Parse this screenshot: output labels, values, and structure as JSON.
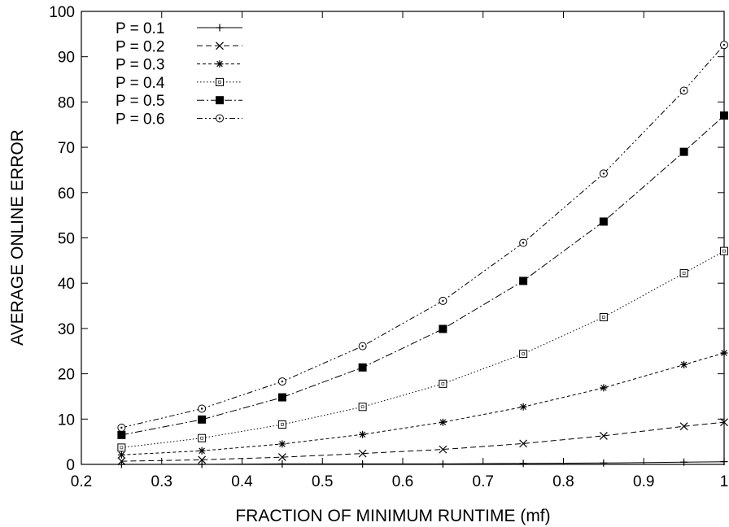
{
  "chart_data": {
    "type": "line",
    "title": "",
    "xlabel": "FRACTION OF MINIMUM RUNTIME (mf)",
    "ylabel": "AVERAGE ONLINE ERROR",
    "xlim": [
      0.2,
      1
    ],
    "ylim": [
      0,
      100
    ],
    "xticks": [
      "0.2",
      "0.3",
      "0.4",
      "0.5",
      "0.6",
      "0.7",
      "0.8",
      "0.9",
      "1"
    ],
    "yticks": [
      "0",
      "10",
      "20",
      "30",
      "40",
      "50",
      "60",
      "70",
      "80",
      "90",
      "100"
    ],
    "grid": false,
    "legend_position": "top-left",
    "x": [
      0.25,
      0.35,
      0.45,
      0.55,
      0.65,
      0.75,
      0.85,
      0.95,
      1.0
    ],
    "series": [
      {
        "name": "P = 0.1",
        "marker": "plus",
        "dash": "solid",
        "values": [
          0.0,
          0.0,
          0.1,
          0.1,
          0.1,
          0.2,
          0.3,
          0.5,
          0.6
        ]
      },
      {
        "name": "P = 0.2",
        "marker": "cross",
        "dash": "dashed",
        "values": [
          0.7,
          1.0,
          1.6,
          2.4,
          3.3,
          4.6,
          6.3,
          8.4,
          9.3
        ]
      },
      {
        "name": "P = 0.3",
        "marker": "star",
        "dash": "short-dashed",
        "values": [
          2.1,
          3.0,
          4.5,
          6.6,
          9.3,
          12.7,
          16.9,
          22.0,
          24.6
        ]
      },
      {
        "name": "P = 0.4",
        "marker": "open-square",
        "dash": "dotted",
        "values": [
          3.7,
          5.8,
          8.8,
          12.7,
          17.8,
          24.4,
          32.5,
          42.2,
          47.1
        ]
      },
      {
        "name": "P = 0.5",
        "marker": "filled-square",
        "dash": "dash-dot",
        "values": [
          6.5,
          9.9,
          14.8,
          21.4,
          29.9,
          40.5,
          53.6,
          69.0,
          77.0
        ]
      },
      {
        "name": "P = 0.6",
        "marker": "open-circle",
        "dash": "dash-dot-dot",
        "values": [
          8.1,
          12.3,
          18.3,
          26.1,
          36.1,
          48.9,
          64.2,
          82.5,
          92.6
        ]
      }
    ]
  }
}
